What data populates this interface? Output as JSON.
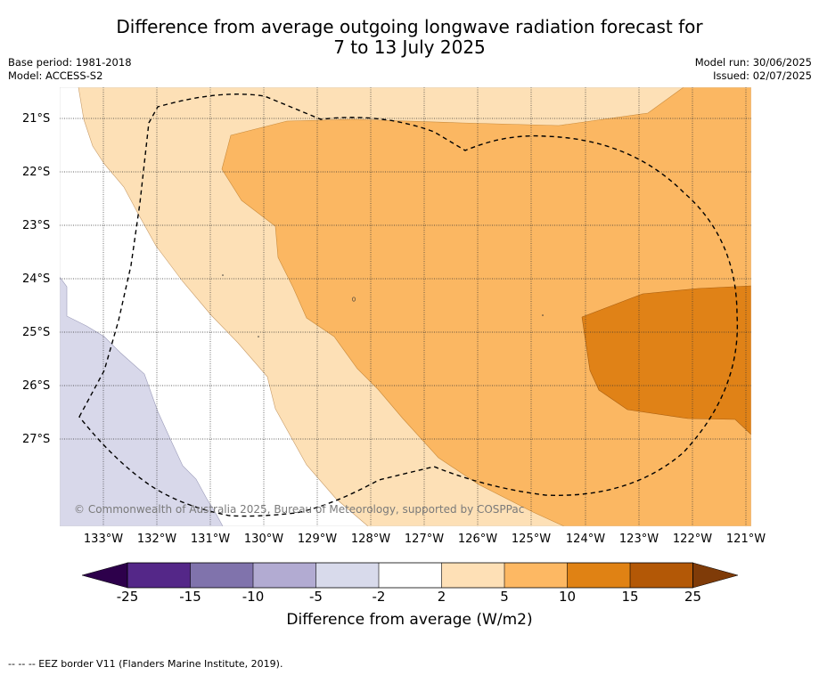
{
  "title": {
    "line1": "Difference from average outgoing longwave radiation forecast for",
    "line2": "7 to 13 July 2025"
  },
  "meta_left": {
    "base_period": "Base period: 1981-2018",
    "model": "Model: ACCESS-S2"
  },
  "meta_right": {
    "model_run": "Model run: 30/06/2025",
    "issued": "Issued: 02/07/2025"
  },
  "map": {
    "latitude_labels": [
      "21°S",
      "22°S",
      "23°S",
      "24°S",
      "25°S",
      "26°S",
      "27°S"
    ],
    "longitude_labels": [
      "133°W",
      "132°W",
      "131°W",
      "130°W",
      "129°W",
      "128°W",
      "127°W",
      "126°W",
      "125°W",
      "124°W",
      "123°W",
      "122°W",
      "121°W"
    ],
    "credit": "© Commonwealth of Australia 2025, Bureau of Meteorology, supported by COSPPac",
    "colors": {
      "neg_2_to_neg_5": "#d8d8ea",
      "pos_2_to_5": "#fde0b6",
      "pos_5_to_10": "#fbb762",
      "pos_10_to_15": "#e08217"
    }
  },
  "colorbar": {
    "ticks": [
      "-25",
      "-15",
      "-10",
      "-5",
      "-2",
      "2",
      "5",
      "10",
      "15",
      "25"
    ],
    "colors": [
      "#2d004b",
      "#542788",
      "#8073ac",
      "#b2abd2",
      "#d8daeb",
      "#ffffff",
      "#fee0b6",
      "#fdb863",
      "#e08214",
      "#b35806",
      "#7f3b08"
    ],
    "title": "Difference from average (W/m2)"
  },
  "footer": "--  --  -- EEZ border V11 (Flanders Marine Institute, 2019)."
}
